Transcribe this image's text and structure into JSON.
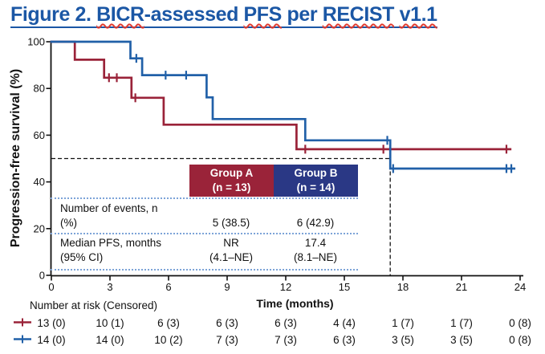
{
  "figure": {
    "title_parts": [
      {
        "text": "Figure 2. ",
        "misspelled": false
      },
      {
        "text": "BICR",
        "misspelled": true
      },
      {
        "text": "-assessed ",
        "misspelled": false
      },
      {
        "text": "PFS",
        "misspelled": true
      },
      {
        "text": " per ",
        "misspelled": false
      },
      {
        "text": "RECIST",
        "misspelled": true
      },
      {
        "text": " ",
        "misspelled": false
      },
      {
        "text": "v1.1",
        "misspelled": true
      }
    ]
  },
  "colors": {
    "title_blue": "#1B57A5",
    "group_a_red": "#9A2339",
    "group_b_header_navy": "#2A3885",
    "group_b_curve_blue": "#2160A8",
    "dotted_separator_blue": "#7DA4D8",
    "spellcheck_red": "#E03C31",
    "axis_black": "#111111"
  },
  "chart_data": {
    "type": "line",
    "chart_kind": "kaplan_meier_step",
    "title": "Figure 2. BICR-assessed PFS per RECIST v1.1",
    "xlabel": "Time (months)",
    "ylabel": "Progression-free survival (%)",
    "xlim": [
      0,
      24
    ],
    "ylim": [
      0,
      100
    ],
    "x_ticks": [
      0,
      3,
      6,
      9,
      12,
      15,
      18,
      21,
      24
    ],
    "y_ticks": [
      0,
      20,
      40,
      60,
      80,
      100
    ],
    "grid": false,
    "legend_position": "none",
    "reference_lines": {
      "horizontal_y_percent": 50,
      "vertical_x_months": 17.35
    },
    "series": [
      {
        "name": "Group A",
        "n": 13,
        "color": "#9A2339",
        "steps_x": [
          0,
          1.2,
          2.7,
          4.1,
          5.75,
          12.55
        ],
        "steps_y_after": [
          100,
          92.3,
          84.6,
          76.0,
          64.5,
          54.0
        ],
        "end_x": 23.5,
        "censor_marks": [
          [
            2.95,
            84.6
          ],
          [
            3.35,
            84.6
          ],
          [
            4.3,
            76.0
          ],
          [
            13.0,
            54.0
          ],
          [
            17.0,
            54.0
          ],
          [
            23.3,
            54.0
          ]
        ]
      },
      {
        "name": "Group B",
        "n": 14,
        "color": "#2160A8",
        "steps_x": [
          0,
          4.05,
          4.65,
          7.95,
          8.26,
          13.0,
          17.35
        ],
        "steps_y_after": [
          100,
          92.9,
          85.7,
          76.2,
          66.9,
          57.8,
          45.7
        ],
        "end_x": 23.7,
        "censor_marks": [
          [
            4.35,
            92.9
          ],
          [
            5.85,
            85.7
          ],
          [
            6.9,
            85.7
          ],
          [
            17.2,
            57.8
          ],
          [
            17.5,
            45.7
          ],
          [
            23.3,
            45.7
          ],
          [
            23.55,
            45.7
          ]
        ]
      }
    ]
  },
  "stats_table": {
    "column_headers": [
      {
        "group": "Group A",
        "n_label": "(n = 13)",
        "bg": "#9A2339"
      },
      {
        "group": "Group B",
        "n_label": "(n = 14)",
        "bg": "#2A3885"
      }
    ],
    "rows": [
      {
        "label_line1": "Number of events, n",
        "label_line2": "(%)",
        "group_a": "5 (38.5)",
        "group_b": "6 (42.9)"
      },
      {
        "label_line1": "Median PFS, months",
        "label_line2": "(95% CI)",
        "group_a_line1": "NR",
        "group_a_line2": "(4.1–NE)",
        "group_b_line1": "17.4",
        "group_b_line2": "(8.1–NE)"
      }
    ]
  },
  "at_risk": {
    "header": "Number at risk (Censored)",
    "time_points": [
      0,
      3,
      6,
      9,
      12,
      15,
      18,
      21,
      24
    ],
    "rows": [
      {
        "name": "Group A",
        "color": "#9A2339",
        "values": [
          "13 (0)",
          "10 (1)",
          "6 (3)",
          "6 (3)",
          "6 (3)",
          "4 (4)",
          "1 (7)",
          "1 (7)",
          "0 (8)"
        ]
      },
      {
        "name": "Group B",
        "color": "#2160A8",
        "values": [
          "14 (0)",
          "14 (0)",
          "10 (2)",
          "7 (3)",
          "7 (3)",
          "6 (3)",
          "3 (5)",
          "3 (5)",
          "0 (8)"
        ]
      }
    ]
  }
}
